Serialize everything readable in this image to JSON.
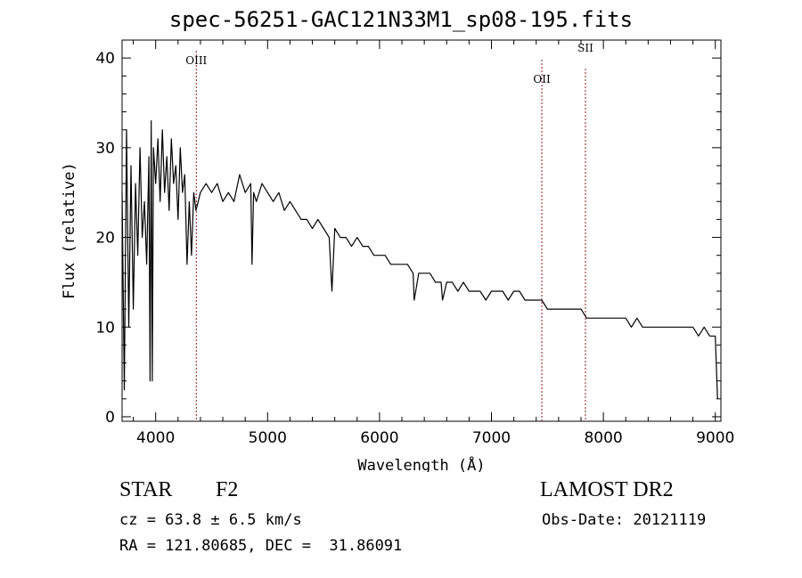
{
  "header": {
    "title": "spec-56251-GAC121N33M1_sp08-195.fits"
  },
  "info": {
    "object_type": "STAR",
    "object_class": "F2",
    "survey": "LAMOST DR2",
    "cz": "cz = 63.8 ± 6.5 km/s",
    "obs_date": "Obs-Date: 20121119",
    "radec": "RA = 121.80685, DEC =  31.86091"
  },
  "chart_data": {
    "type": "line",
    "title": "spec-56251-GAC121N33M1_sp08-195.fits",
    "xlabel": "Wavelength (Å)",
    "ylabel": "Flux (relative)",
    "xlim": [
      3700,
      9050
    ],
    "ylim": [
      -0.5,
      42
    ],
    "xticks": [
      4000,
      5000,
      6000,
      7000,
      8000,
      9000
    ],
    "yticks": [
      0,
      10,
      20,
      30,
      40
    ],
    "grid": false,
    "line_color": "#000000",
    "marker_color": "#8b1a1a",
    "line_markers": [
      {
        "label": "OIII",
        "x": 4363
      },
      {
        "label": "OII",
        "x": 7450
      },
      {
        "label": "SII",
        "x": 7840
      }
    ],
    "series": [
      {
        "x": [
          3700,
          3720,
          3740,
          3760,
          3780,
          3800,
          3820,
          3840,
          3860,
          3880,
          3900,
          3920,
          3940,
          3950,
          3960,
          3970,
          3980,
          4000,
          4020,
          4040,
          4060,
          4080,
          4100,
          4120,
          4140,
          4160,
          4180,
          4200,
          4220,
          4240,
          4260,
          4280,
          4300,
          4320,
          4340,
          4360,
          4380,
          4400,
          4450,
          4500,
          4550,
          4600,
          4650,
          4700,
          4750,
          4800,
          4850,
          4861,
          4875,
          4900,
          4950,
          5000,
          5050,
          5100,
          5150,
          5200,
          5250,
          5300,
          5350,
          5400,
          5450,
          5500,
          5550,
          5575,
          5600,
          5650,
          5700,
          5750,
          5800,
          5850,
          5900,
          5950,
          6000,
          6050,
          6100,
          6150,
          6200,
          6250,
          6300,
          6310,
          6350,
          6400,
          6450,
          6500,
          6550,
          6563,
          6600,
          6650,
          6700,
          6750,
          6800,
          6850,
          6900,
          6950,
          7000,
          7050,
          7100,
          7150,
          7200,
          7250,
          7300,
          7350,
          7400,
          7450,
          7500,
          7550,
          7600,
          7650,
          7700,
          7750,
          7800,
          7850,
          7900,
          7950,
          8000,
          8050,
          8100,
          8150,
          8200,
          8250,
          8300,
          8350,
          8400,
          8450,
          8500,
          8550,
          8600,
          8650,
          8700,
          8750,
          8800,
          8850,
          8900,
          8950,
          9000,
          9020
        ],
        "y": [
          25,
          3,
          32,
          10,
          28,
          12,
          26,
          18,
          30,
          20,
          24,
          17,
          29,
          4,
          33,
          4,
          30,
          26,
          31,
          24,
          32,
          25,
          29,
          23,
          31,
          26,
          28,
          22,
          30,
          25,
          27,
          17,
          24,
          18,
          25,
          23,
          24,
          25,
          26,
          25,
          26,
          24,
          25,
          24,
          27,
          25,
          26,
          17,
          25,
          24,
          26,
          25,
          24,
          25,
          23,
          24,
          23,
          22,
          22,
          21,
          22,
          21,
          20,
          14,
          21,
          20,
          20,
          19,
          20,
          19,
          19,
          18,
          18,
          18,
          17,
          17,
          17,
          17,
          16,
          13,
          16,
          16,
          16,
          15,
          15,
          13,
          15,
          15,
          14,
          15,
          14,
          14,
          14,
          13,
          14,
          14,
          14,
          13,
          14,
          14,
          13,
          13,
          13,
          13,
          12,
          12,
          12,
          12,
          12,
          12,
          12,
          11,
          11,
          11,
          11,
          11,
          11,
          11,
          11,
          10,
          11,
          10,
          10,
          10,
          10,
          10,
          10,
          10,
          10,
          10,
          10,
          9,
          10,
          9,
          9,
          2
        ]
      }
    ]
  }
}
